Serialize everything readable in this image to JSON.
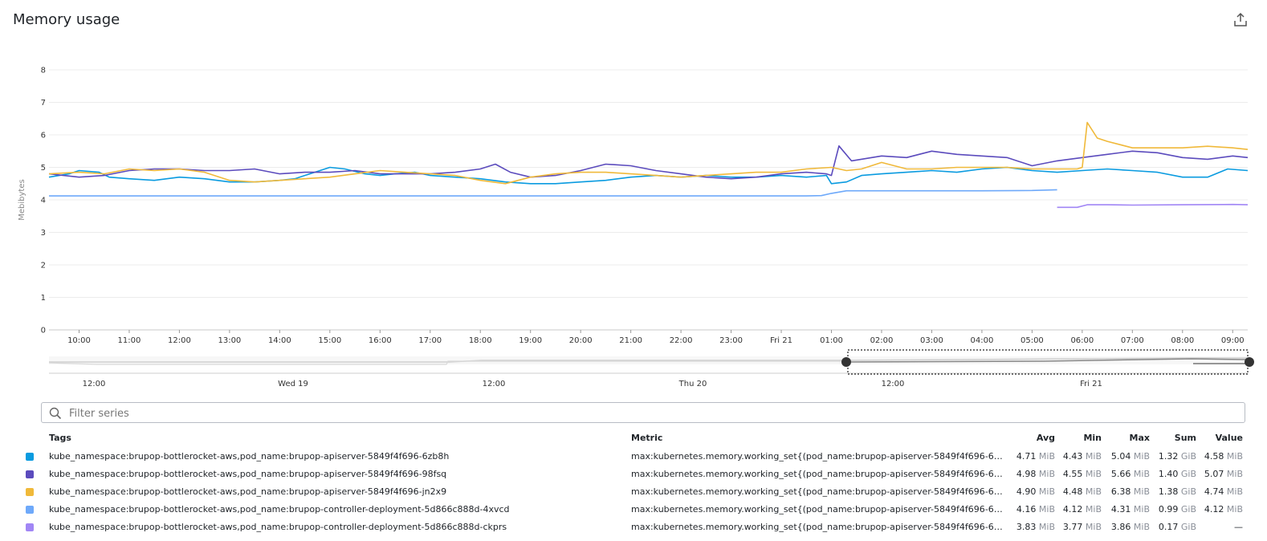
{
  "title": "Memory usage",
  "export_icon": "export-icon",
  "search_icon": "search-icon",
  "filter": {
    "placeholder": "Filter series",
    "value": ""
  },
  "colors": {
    "blue": "#0a9be0",
    "purple": "#5b4bbd",
    "yellow": "#f0b93a",
    "lightblue": "#6ea9fa",
    "lavender": "#a186f5"
  },
  "navigator": {
    "labels": [
      "12:00",
      "Wed 19",
      "12:00",
      "Thu 20",
      "12:00",
      "Fri 21"
    ]
  },
  "legend": {
    "headers": {
      "tags": "Tags",
      "metric": "Metric",
      "avg": "Avg",
      "min": "Min",
      "max": "Max",
      "sum": "Sum",
      "value": "Value"
    },
    "rows": [
      {
        "color": "#0a9be0",
        "tags": "kube_namespace:brupop-bottlerocket-aws,pod_name:brupop-apiserver-5849f4f696-6zb8h",
        "metric": "max:kubernetes.memory.working_set{(pod_name:brupop-apiserver-5849f4f696-6zb8h OR ...",
        "avg": "4.71",
        "avg_u": "MiB",
        "min": "4.43",
        "min_u": "MiB",
        "max": "5.04",
        "max_u": "MiB",
        "sum": "1.32",
        "sum_u": "GiB",
        "value": "4.58",
        "value_u": "MiB"
      },
      {
        "color": "#5b4bbd",
        "tags": "kube_namespace:brupop-bottlerocket-aws,pod_name:brupop-apiserver-5849f4f696-98fsq",
        "metric": "max:kubernetes.memory.working_set{(pod_name:brupop-apiserver-5849f4f696-6zb8h OR ...",
        "avg": "4.98",
        "avg_u": "MiB",
        "min": "4.55",
        "min_u": "MiB",
        "max": "5.66",
        "max_u": "MiB",
        "sum": "1.40",
        "sum_u": "GiB",
        "value": "5.07",
        "value_u": "MiB"
      },
      {
        "color": "#f0b93a",
        "tags": "kube_namespace:brupop-bottlerocket-aws,pod_name:brupop-apiserver-5849f4f696-jn2x9",
        "metric": "max:kubernetes.memory.working_set{(pod_name:brupop-apiserver-5849f4f696-6zb8h OR ...",
        "avg": "4.90",
        "avg_u": "MiB",
        "min": "4.48",
        "min_u": "MiB",
        "max": "6.38",
        "max_u": "MiB",
        "sum": "1.38",
        "sum_u": "GiB",
        "value": "4.74",
        "value_u": "MiB"
      },
      {
        "color": "#6ea9fa",
        "tags": "kube_namespace:brupop-bottlerocket-aws,pod_name:brupop-controller-deployment-5d866c888d-4xvcd",
        "metric": "max:kubernetes.memory.working_set{(pod_name:brupop-apiserver-5849f4f696-6zb8h OR ...",
        "avg": "4.16",
        "avg_u": "MiB",
        "min": "4.12",
        "min_u": "MiB",
        "max": "4.31",
        "max_u": "MiB",
        "sum": "0.99",
        "sum_u": "GiB",
        "value": "4.12",
        "value_u": "MiB"
      },
      {
        "color": "#a186f5",
        "tags": "kube_namespace:brupop-bottlerocket-aws,pod_name:brupop-controller-deployment-5d866c888d-ckprs",
        "metric": "max:kubernetes.memory.working_set{(pod_name:brupop-apiserver-5849f4f696-6zb8h OR ...",
        "avg": "3.83",
        "avg_u": "MiB",
        "min": "3.77",
        "min_u": "MiB",
        "max": "3.86",
        "max_u": "MiB",
        "sum": "0.17",
        "sum_u": "GiB",
        "value": "—",
        "value_u": ""
      }
    ]
  },
  "chart_data": {
    "type": "line",
    "title": "Memory usage",
    "xlabel": "",
    "ylabel": "Mebibytes",
    "ylim": [
      0,
      8
    ],
    "yticks": [
      "0",
      "1",
      "2",
      "3",
      "4",
      "5",
      "6",
      "7",
      "8"
    ],
    "xlim": [
      9.4,
      33.3
    ],
    "xticks": [
      {
        "x": 10,
        "label": "10:00"
      },
      {
        "x": 11,
        "label": "11:00"
      },
      {
        "x": 12,
        "label": "12:00"
      },
      {
        "x": 13,
        "label": "13:00"
      },
      {
        "x": 14,
        "label": "14:00"
      },
      {
        "x": 15,
        "label": "15:00"
      },
      {
        "x": 16,
        "label": "16:00"
      },
      {
        "x": 17,
        "label": "17:00"
      },
      {
        "x": 18,
        "label": "18:00"
      },
      {
        "x": 19,
        "label": "19:00"
      },
      {
        "x": 20,
        "label": "20:00"
      },
      {
        "x": 21,
        "label": "21:00"
      },
      {
        "x": 22,
        "label": "22:00"
      },
      {
        "x": 23,
        "label": "23:00"
      },
      {
        "x": 24,
        "label": "Fri 21"
      },
      {
        "x": 25,
        "label": "01:00"
      },
      {
        "x": 26,
        "label": "02:00"
      },
      {
        "x": 27,
        "label": "03:00"
      },
      {
        "x": 28,
        "label": "04:00"
      },
      {
        "x": 29,
        "label": "05:00"
      },
      {
        "x": 30,
        "label": "06:00"
      },
      {
        "x": 31,
        "label": "07:00"
      },
      {
        "x": 32,
        "label": "08:00"
      },
      {
        "x": 33,
        "label": "09:00"
      }
    ],
    "grid": true,
    "series": [
      {
        "name": "brupop-apiserver-5849f4f696-6zb8h",
        "color": "#0a9be0",
        "x": [
          9.4,
          9.8,
          10.0,
          10.4,
          10.6,
          11.0,
          11.5,
          12.0,
          12.5,
          13.0,
          13.5,
          14.0,
          14.3,
          14.6,
          15.0,
          15.3,
          15.7,
          16.0,
          16.3,
          16.7,
          17.0,
          17.5,
          18.0,
          18.5,
          19.0,
          19.5,
          20.0,
          20.5,
          21.0,
          21.5,
          22.0,
          22.5,
          23.0,
          23.5,
          24.0,
          24.5,
          24.9,
          25.0,
          25.3,
          25.6,
          26.0,
          26.5,
          27.0,
          27.5,
          28.0,
          28.5,
          29.0,
          29.5,
          30.0,
          30.5,
          31.0,
          31.5,
          32.0,
          32.5,
          32.9,
          33.3
        ],
        "y": [
          4.7,
          4.8,
          4.9,
          4.85,
          4.7,
          4.65,
          4.6,
          4.7,
          4.65,
          4.55,
          4.55,
          4.6,
          4.65,
          4.8,
          5.0,
          4.95,
          4.8,
          4.75,
          4.8,
          4.85,
          4.75,
          4.7,
          4.65,
          4.55,
          4.5,
          4.5,
          4.55,
          4.6,
          4.7,
          4.75,
          4.7,
          4.75,
          4.7,
          4.7,
          4.75,
          4.7,
          4.75,
          4.5,
          4.55,
          4.75,
          4.8,
          4.85,
          4.9,
          4.85,
          4.95,
          5.0,
          4.9,
          4.85,
          4.9,
          4.95,
          4.9,
          4.85,
          4.7,
          4.7,
          4.95,
          4.9
        ]
      },
      {
        "name": "brupop-apiserver-5849f4f696-98fsq",
        "color": "#5b4bbd",
        "x": [
          9.4,
          10.0,
          10.5,
          11.0,
          11.5,
          12.0,
          12.5,
          13.0,
          13.5,
          14.0,
          14.5,
          15.0,
          15.5,
          16.0,
          16.5,
          17.0,
          17.5,
          18.0,
          18.3,
          18.6,
          19.0,
          19.5,
          20.0,
          20.5,
          21.0,
          21.5,
          22.0,
          22.5,
          23.0,
          23.5,
          24.0,
          24.5,
          24.9,
          25.0,
          25.15,
          25.4,
          26.0,
          26.5,
          27.0,
          27.5,
          28.0,
          28.5,
          29.0,
          29.5,
          30.0,
          30.5,
          31.0,
          31.5,
          32.0,
          32.5,
          33.0,
          33.3
        ],
        "y": [
          4.8,
          4.7,
          4.75,
          4.9,
          4.95,
          4.95,
          4.9,
          4.9,
          4.95,
          4.8,
          4.85,
          4.85,
          4.9,
          4.8,
          4.8,
          4.8,
          4.85,
          4.95,
          5.1,
          4.85,
          4.7,
          4.75,
          4.9,
          5.1,
          5.05,
          4.9,
          4.8,
          4.7,
          4.65,
          4.7,
          4.8,
          4.85,
          4.8,
          4.75,
          5.66,
          5.2,
          5.35,
          5.3,
          5.5,
          5.4,
          5.35,
          5.3,
          5.05,
          5.2,
          5.3,
          5.4,
          5.5,
          5.45,
          5.3,
          5.25,
          5.35,
          5.3
        ]
      },
      {
        "name": "brupop-apiserver-5849f4f696-jn2x9",
        "color": "#f0b93a",
        "x": [
          9.4,
          10.0,
          10.5,
          11.0,
          11.5,
          12.0,
          12.5,
          13.0,
          13.5,
          14.0,
          14.5,
          15.0,
          15.5,
          16.0,
          16.5,
          17.0,
          17.5,
          18.0,
          18.5,
          19.0,
          19.5,
          20.0,
          20.5,
          21.0,
          21.5,
          22.0,
          22.5,
          23.0,
          23.5,
          24.0,
          24.5,
          25.0,
          25.3,
          25.6,
          26.0,
          26.5,
          27.0,
          27.5,
          28.0,
          28.5,
          29.0,
          29.5,
          29.9,
          30.0,
          30.1,
          30.3,
          30.5,
          31.0,
          31.5,
          32.0,
          32.5,
          33.0,
          33.3
        ],
        "y": [
          4.8,
          4.85,
          4.8,
          4.95,
          4.9,
          4.95,
          4.85,
          4.6,
          4.55,
          4.6,
          4.65,
          4.7,
          4.8,
          4.9,
          4.85,
          4.8,
          4.75,
          4.6,
          4.5,
          4.7,
          4.8,
          4.85,
          4.85,
          4.8,
          4.75,
          4.7,
          4.75,
          4.8,
          4.85,
          4.85,
          4.95,
          5.0,
          4.9,
          4.95,
          5.15,
          4.95,
          4.95,
          5.0,
          5.0,
          5.0,
          4.95,
          4.95,
          4.95,
          5.0,
          6.38,
          5.9,
          5.8,
          5.6,
          5.6,
          5.6,
          5.65,
          5.6,
          5.55
        ]
      },
      {
        "name": "brupop-controller-deployment-5d866c888d-4xvcd",
        "color": "#6ea9fa",
        "x": [
          9.4,
          11.0,
          13.0,
          15.0,
          17.0,
          19.0,
          21.0,
          23.0,
          24.5,
          24.8,
          25.0,
          25.3,
          26.0,
          27.0,
          28.0,
          29.0,
          29.5
        ],
        "y": [
          4.12,
          4.12,
          4.12,
          4.12,
          4.12,
          4.12,
          4.12,
          4.12,
          4.12,
          4.13,
          4.2,
          4.28,
          4.28,
          4.28,
          4.28,
          4.29,
          4.31
        ]
      },
      {
        "name": "brupop-controller-deployment-5d866c888d-ckprs",
        "color": "#a186f5",
        "x": [
          29.5,
          29.9,
          30.1,
          30.5,
          31.0,
          32.0,
          33.0,
          33.3
        ],
        "y": [
          3.77,
          3.77,
          3.85,
          3.85,
          3.84,
          3.85,
          3.86,
          3.85
        ]
      }
    ]
  }
}
